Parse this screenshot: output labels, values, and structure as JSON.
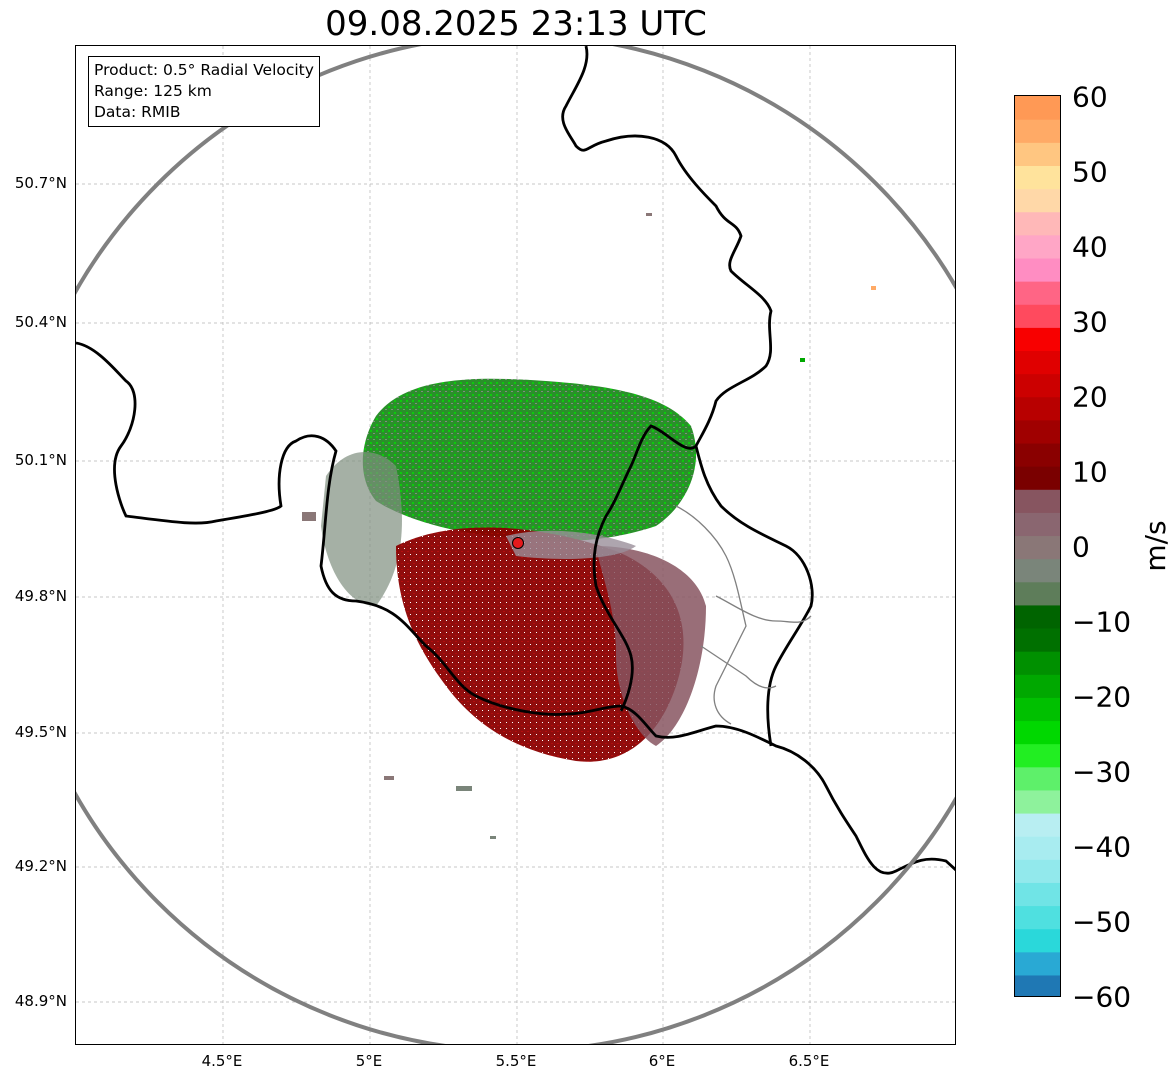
{
  "title": "09.08.2025 23:13 UTC",
  "info": {
    "product": "Product: 0.5° Radial Velocity",
    "range": "Range: 125 km",
    "data": "Data: RMIB"
  },
  "map": {
    "lat_ticks": [
      "50.7°N",
      "50.4°N",
      "50.1°N",
      "49.8°N",
      "49.5°N",
      "49.2°N",
      "48.9°N"
    ],
    "lon_ticks": [
      "4.5°E",
      "5°E",
      "5.5°E",
      "6°E",
      "6.5°E"
    ],
    "radar_site": "radar-site-marker",
    "colors": {
      "range_ring": "#808080",
      "border": "#000000",
      "site": "#e41a1c"
    }
  },
  "colorbar": {
    "unit": "m/s",
    "ticks": [
      "60",
      "50",
      "40",
      "30",
      "20",
      "10",
      "0",
      "−10",
      "−20",
      "−30",
      "−40",
      "−50",
      "−60"
    ],
    "range": [
      -60,
      60
    ],
    "colors": [
      "#1f78b4",
      "#29a9d4",
      "#2ad8da",
      "#4fe0e0",
      "#70e4e6",
      "#92e9ec",
      "#a8ecf0",
      "#b8eef2",
      "#8ef29c",
      "#5ef06a",
      "#22ee22",
      "#00d800",
      "#00c000",
      "#00a800",
      "#009000",
      "#007000",
      "#006400",
      "#5e7d5a",
      "#7a857a",
      "#8a7777",
      "#8a6670",
      "#875560",
      "#7a0000",
      "#8a0000",
      "#a00000",
      "#b80000",
      "#cc0000",
      "#e00000",
      "#f80000",
      "#ff4a5e",
      "#ff6585",
      "#ff8dc2",
      "#ffa6c6",
      "#ffb8b8",
      "#ffd8a8",
      "#ffe39c",
      "#ffc681",
      "#ffaa66",
      "#ff9955"
    ]
  }
}
